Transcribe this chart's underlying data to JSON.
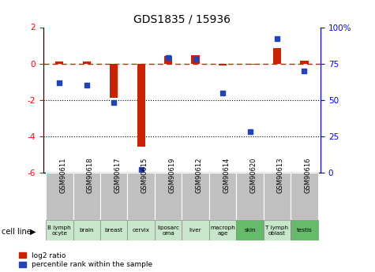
{
  "title": "GDS1835 / 15936",
  "samples": [
    "GSM90611",
    "GSM90618",
    "GSM90617",
    "GSM90615",
    "GSM90619",
    "GSM90612",
    "GSM90614",
    "GSM90620",
    "GSM90613",
    "GSM90616"
  ],
  "cell_lines": [
    "B lymph\nocyte",
    "brain",
    "breast",
    "cervix",
    "liposarc\noma",
    "liver",
    "macroph\nage",
    "skin",
    "T lymph\noblast",
    "testis"
  ],
  "cell_line_colors": [
    "#c8e6c9",
    "#c8e6c9",
    "#c8e6c9",
    "#c8e6c9",
    "#c8e6c9",
    "#c8e6c9",
    "#c8e6c9",
    "#66bb6a",
    "#c8e6c9",
    "#66bb6a"
  ],
  "log2_ratio": [
    0.1,
    0.1,
    -1.9,
    -4.55,
    0.4,
    0.45,
    -0.1,
    -0.05,
    0.85,
    0.15
  ],
  "percentile_rank": [
    62,
    60,
    48,
    2,
    79,
    78,
    55,
    28,
    92,
    70
  ],
  "ylim_left": [
    -6,
    2
  ],
  "ylim_right": [
    0,
    100
  ],
  "left_ticks": [
    -6,
    -4,
    -2,
    0,
    2
  ],
  "left_tick_labels": [
    "-6",
    "-4",
    "-2",
    "0",
    "2"
  ],
  "right_ticks": [
    0,
    25,
    50,
    75,
    100
  ],
  "right_tick_labels": [
    "0",
    "25",
    "50",
    "75",
    "100%"
  ],
  "bar_color_red": "#cc2200",
  "bar_color_blue": "#2244bb",
  "legend_red_label": "log2 ratio",
  "legend_blue_label": "percentile rank within the sample",
  "bar_width": 0.3
}
